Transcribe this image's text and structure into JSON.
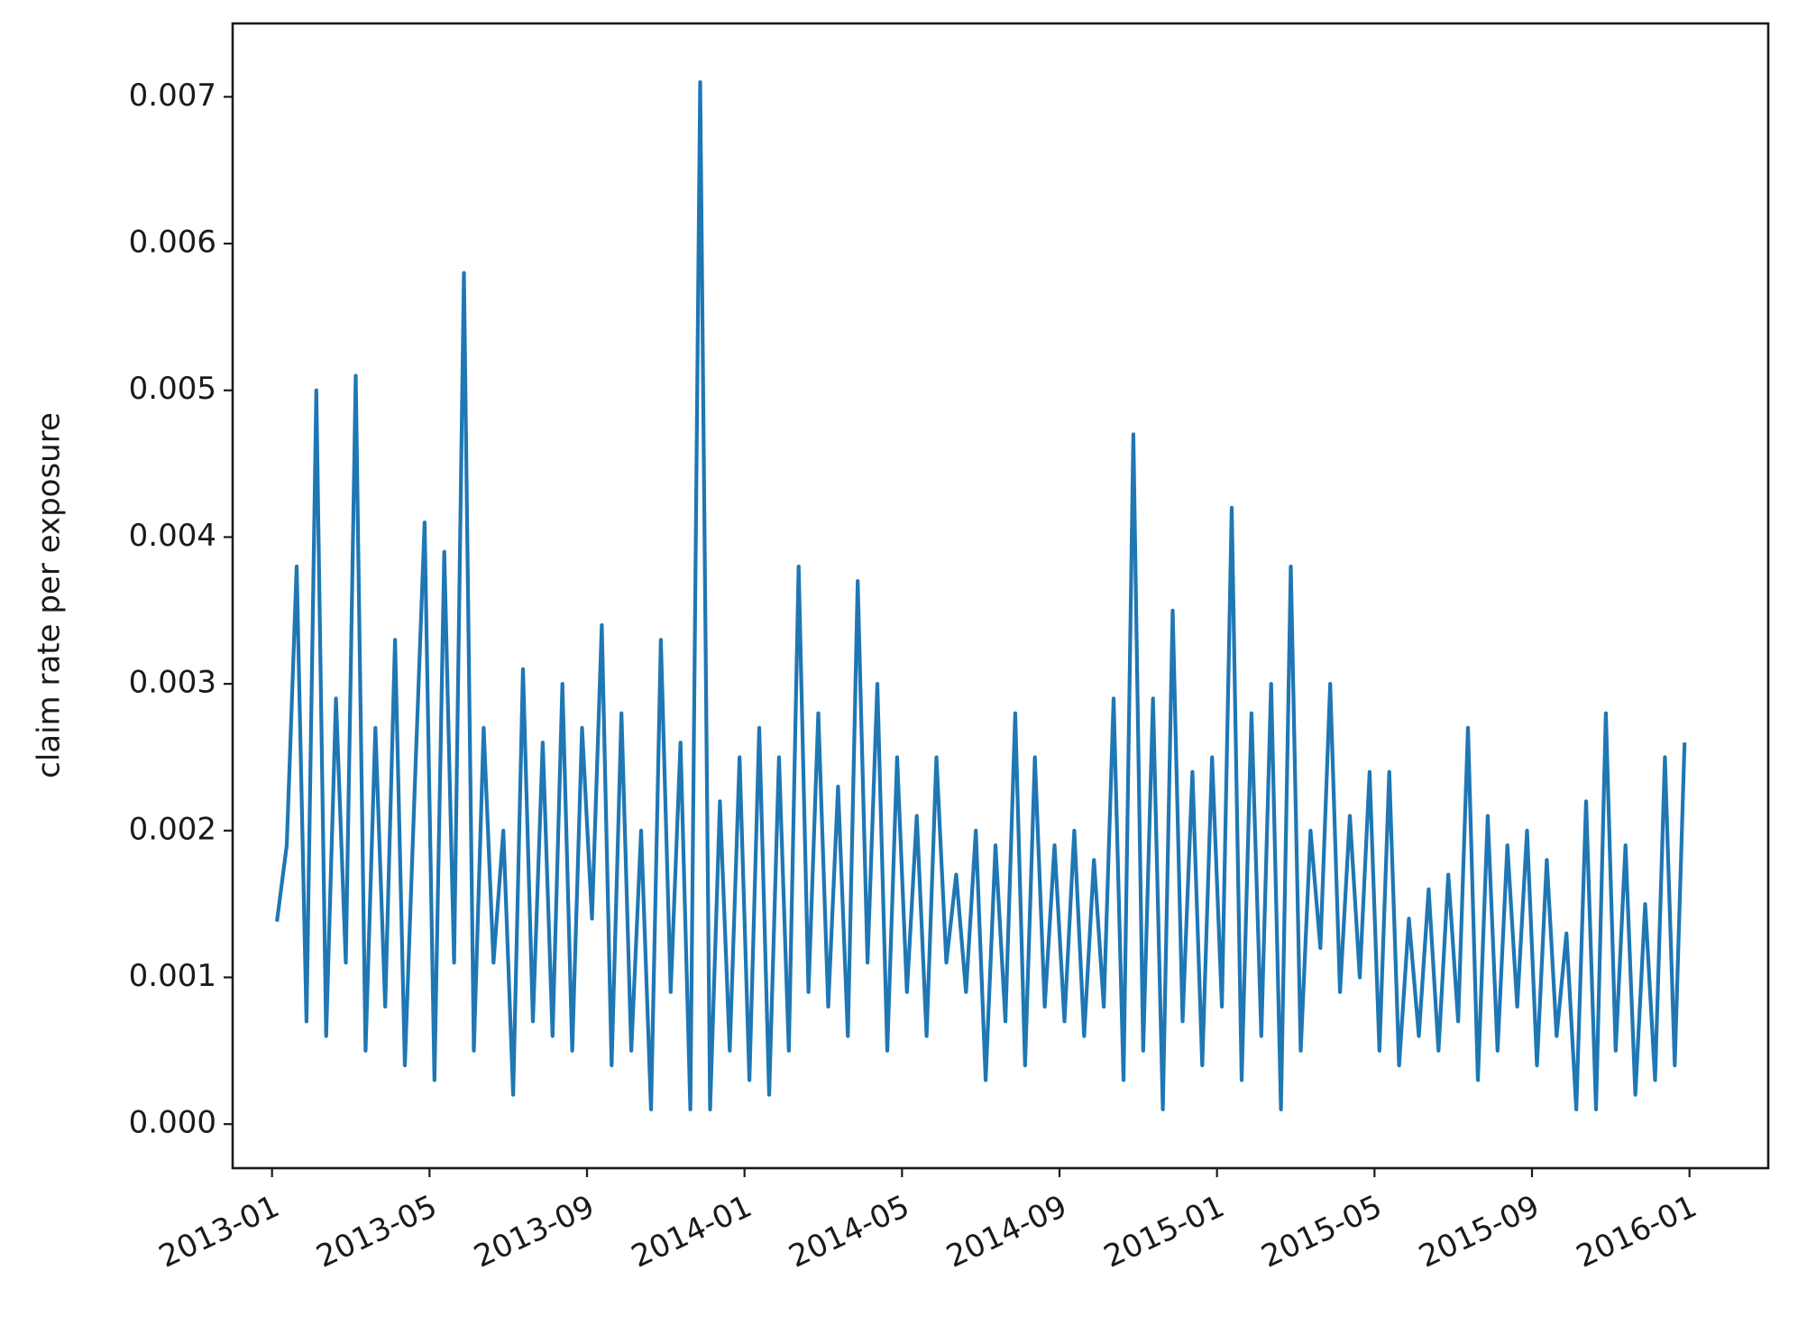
{
  "chart_data": {
    "type": "line",
    "y_label": "claim rate per exposure",
    "color": "#1f77b4",
    "x": [
      "2013-01",
      "2013-01",
      "2013-01",
      "2013-01",
      "2013-02",
      "2013-02",
      "2013-02",
      "2013-02",
      "2013-03",
      "2013-03",
      "2013-03",
      "2013-03",
      "2013-04",
      "2013-04",
      "2013-04",
      "2013-04",
      "2013-05",
      "2013-05",
      "2013-05",
      "2013-05",
      "2013-06",
      "2013-06",
      "2013-06",
      "2013-06",
      "2013-07",
      "2013-07",
      "2013-07",
      "2013-07",
      "2013-08",
      "2013-08",
      "2013-08",
      "2013-08",
      "2013-09",
      "2013-09",
      "2013-09",
      "2013-09",
      "2013-10",
      "2013-10",
      "2013-10",
      "2013-10",
      "2013-11",
      "2013-11",
      "2013-11",
      "2013-11",
      "2013-12",
      "2013-12",
      "2013-12",
      "2013-12",
      "2014-01",
      "2014-01",
      "2014-01",
      "2014-01",
      "2014-02",
      "2014-02",
      "2014-02",
      "2014-02",
      "2014-03",
      "2014-03",
      "2014-03",
      "2014-03",
      "2014-04",
      "2014-04",
      "2014-04",
      "2014-04",
      "2014-05",
      "2014-05",
      "2014-05",
      "2014-05",
      "2014-06",
      "2014-06",
      "2014-06",
      "2014-06",
      "2014-07",
      "2014-07",
      "2014-07",
      "2014-07",
      "2014-08",
      "2014-08",
      "2014-08",
      "2014-08",
      "2014-09",
      "2014-09",
      "2014-09",
      "2014-09",
      "2014-10",
      "2014-10",
      "2014-10",
      "2014-10",
      "2014-11",
      "2014-11",
      "2014-11",
      "2014-11",
      "2014-12",
      "2014-12",
      "2014-12",
      "2014-12",
      "2015-01",
      "2015-01",
      "2015-01",
      "2015-01",
      "2015-02",
      "2015-02",
      "2015-02",
      "2015-02",
      "2015-03",
      "2015-03",
      "2015-03",
      "2015-03",
      "2015-04",
      "2015-04",
      "2015-04",
      "2015-04",
      "2015-05",
      "2015-05",
      "2015-05",
      "2015-05",
      "2015-06",
      "2015-06",
      "2015-06",
      "2015-06",
      "2015-07",
      "2015-07",
      "2015-07",
      "2015-07",
      "2015-08",
      "2015-08",
      "2015-08",
      "2015-08",
      "2015-09",
      "2015-09",
      "2015-09",
      "2015-09",
      "2015-10",
      "2015-10",
      "2015-10",
      "2015-10",
      "2015-11",
      "2015-11",
      "2015-11",
      "2015-11",
      "2015-12",
      "2015-12",
      "2015-12",
      "2015-12"
    ],
    "values": [
      0.00138,
      0.0019,
      0.0038,
      0.0007,
      0.005,
      0.0006,
      0.0029,
      0.0011,
      0.0051,
      0.0005,
      0.0027,
      0.0008,
      0.0033,
      0.0004,
      0.0023,
      0.0041,
      0.0003,
      0.0039,
      0.0011,
      0.0058,
      0.0005,
      0.0027,
      0.0011,
      0.002,
      0.0002,
      0.0031,
      0.0007,
      0.0026,
      0.0006,
      0.003,
      0.0005,
      0.0027,
      0.0014,
      0.0034,
      0.0004,
      0.0028,
      0.0005,
      0.002,
      0.0001,
      0.0033,
      0.0009,
      0.0026,
      0.0001,
      0.0071,
      0.0001,
      0.0022,
      0.0005,
      0.0025,
      0.0003,
      0.0027,
      0.0002,
      0.0025,
      0.0005,
      0.0038,
      0.0009,
      0.0028,
      0.0008,
      0.0023,
      0.0006,
      0.0037,
      0.0011,
      0.003,
      0.0005,
      0.0025,
      0.0009,
      0.0021,
      0.0006,
      0.0025,
      0.0011,
      0.0017,
      0.0009,
      0.002,
      0.0003,
      0.0019,
      0.0007,
      0.0028,
      0.0004,
      0.0025,
      0.0008,
      0.0019,
      0.0007,
      0.002,
      0.0006,
      0.0018,
      0.0008,
      0.0029,
      0.0003,
      0.0047,
      0.0005,
      0.0029,
      0.0001,
      0.0035,
      0.0007,
      0.0024,
      0.0004,
      0.0025,
      0.0008,
      0.0042,
      0.0003,
      0.0028,
      0.0006,
      0.003,
      0.0001,
      0.0038,
      0.0005,
      0.002,
      0.0012,
      0.003,
      0.0009,
      0.0021,
      0.001,
      0.0024,
      0.0005,
      0.0024,
      0.0004,
      0.0014,
      0.0006,
      0.0016,
      0.0005,
      0.0017,
      0.0007,
      0.0027,
      0.0003,
      0.0021,
      0.0005,
      0.0019,
      0.0008,
      0.002,
      0.0004,
      0.0018,
      0.0006,
      0.0013,
      0.0001,
      0.0022,
      0.0001,
      0.0028,
      0.0005,
      0.0019,
      0.0002,
      0.0015,
      0.0003,
      0.0025,
      0.0004,
      0.0026
    ],
    "xlim": [
      "2012-12",
      "2016-03"
    ],
    "xticks": [
      "2013-01",
      "2013-05",
      "2013-09",
      "2014-01",
      "2014-05",
      "2014-09",
      "2015-01",
      "2015-05",
      "2015-09",
      "2016-01"
    ],
    "ylim": [
      -0.0003,
      0.0075
    ],
    "yticks": [
      {
        "value": 0,
        "label": "0.000"
      },
      {
        "value": 0.001,
        "label": "0.001"
      },
      {
        "value": 0.002,
        "label": "0.002"
      },
      {
        "value": 0.003,
        "label": "0.003"
      },
      {
        "value": 0.004,
        "label": "0.004"
      },
      {
        "value": 0.005,
        "label": "0.005"
      },
      {
        "value": 0.006,
        "label": "0.006"
      },
      {
        "value": 0.007,
        "label": "0.007"
      }
    ]
  }
}
